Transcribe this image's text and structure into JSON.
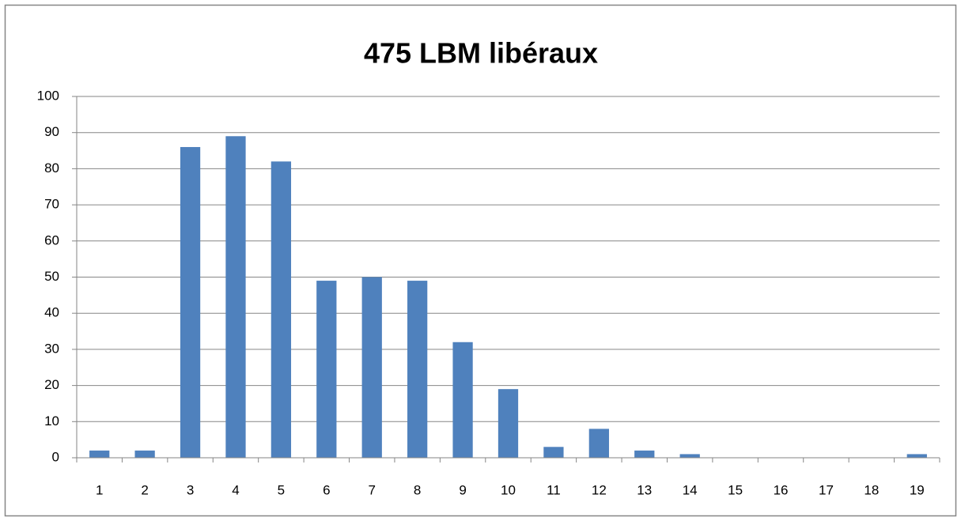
{
  "chart_data": {
    "type": "bar",
    "title": "475 LBM libéraux",
    "categories": [
      "1",
      "2",
      "3",
      "4",
      "5",
      "6",
      "7",
      "8",
      "9",
      "10",
      "11",
      "12",
      "13",
      "14",
      "15",
      "16",
      "17",
      "18",
      "19"
    ],
    "values": [
      2,
      2,
      86,
      89,
      82,
      49,
      50,
      49,
      32,
      19,
      3,
      8,
      2,
      1,
      0,
      0,
      0,
      0,
      1
    ],
    "color": "#4f81bd",
    "ylim": [
      0,
      100
    ],
    "yticks": [
      0,
      10,
      20,
      30,
      40,
      50,
      60,
      70,
      80,
      90,
      100
    ],
    "grid": true
  }
}
